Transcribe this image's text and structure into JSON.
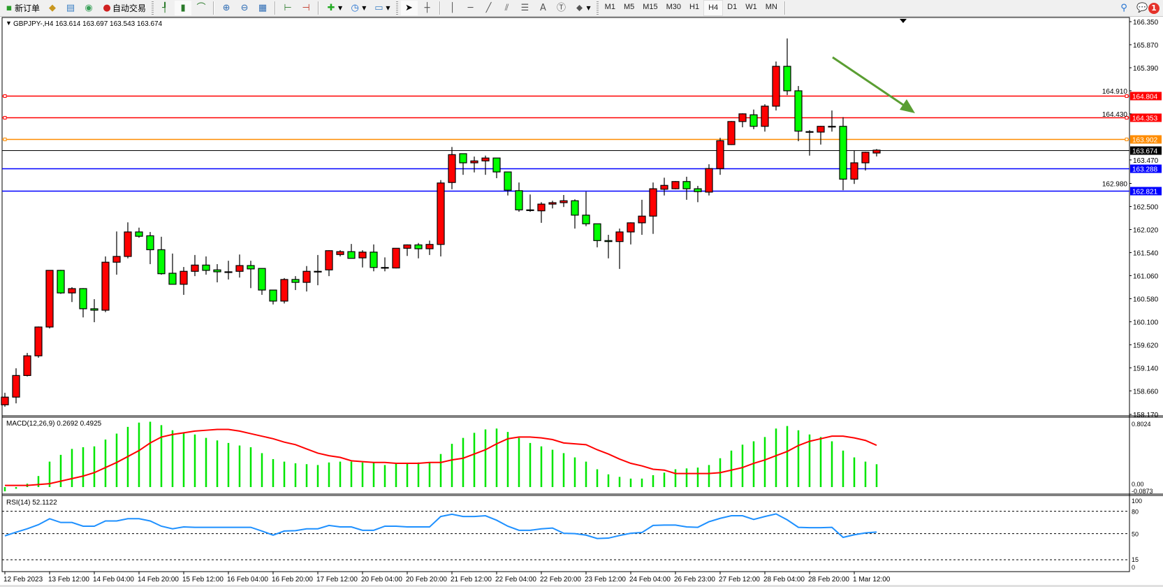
{
  "toolbar": {
    "new_order": "新订单",
    "auto_trading": "自动交易",
    "timeframes": [
      "M1",
      "M5",
      "M15",
      "M30",
      "H1",
      "H4",
      "D1",
      "W1",
      "MN"
    ],
    "active_timeframe": "H4",
    "notification_count": "1",
    "icons": [
      "new-order-icon",
      "market-watch-icon",
      "data-window-icon",
      "signals-icon",
      "auto-trading-icon",
      "bar-chart-icon",
      "candlestick-icon",
      "line-chart-icon",
      "zoom-in-icon",
      "zoom-out-icon",
      "tile-windows-icon",
      "chart-shift-icon",
      "autoscroll-icon",
      "indicators-icon",
      "periods-icon",
      "templates-icon",
      "cursor-icon",
      "crosshair-icon",
      "vertical-line-icon",
      "horizontal-line-icon",
      "trendline-icon",
      "equidistant-channel-icon",
      "fibonacci-icon",
      "text-icon",
      "text-label-icon",
      "arrows-icon",
      "search-icon",
      "notification-icon"
    ]
  },
  "chart": {
    "header": "GBPJPY-,H4  163.614 163.697 163.543 163.674",
    "colors": {
      "bull": "#ff0000",
      "bear": "#00ff00",
      "macd_hist": "#00e600",
      "macd_signal": "#ff0000",
      "rsi": "#1e90ff",
      "arrow": "#5a9e32"
    },
    "price_axis_labels": [
      "166.350",
      "165.870",
      "165.390",
      "164.910",
      "164.430",
      "163.470",
      "162.980",
      "162.500",
      "162.020",
      "161.540",
      "161.060",
      "160.580",
      "160.100",
      "159.620",
      "159.140",
      "158.660",
      "158.170"
    ],
    "price_range": [
      158.17,
      166.35
    ],
    "current_price": {
      "price": "163.674",
      "color": "#000000"
    },
    "level_lines": [
      {
        "price": "164.804",
        "color": "#ff0000"
      },
      {
        "price": "164.353",
        "color": "#ff0000"
      },
      {
        "price": "163.902",
        "color": "#ff8c00"
      },
      {
        "price": "163.288",
        "color": "#0000ff"
      },
      {
        "price": "162.821",
        "color": "#0000ff"
      }
    ],
    "candles_ohlc": [
      [
        158.37,
        158.62,
        158.33,
        158.53
      ],
      [
        158.53,
        159.13,
        158.4,
        158.98
      ],
      [
        158.98,
        159.45,
        158.96,
        159.39
      ],
      [
        159.39,
        160.0,
        159.35,
        159.99
      ],
      [
        159.99,
        161.17,
        159.96,
        161.17
      ],
      [
        161.17,
        161.18,
        160.68,
        160.7
      ],
      [
        160.7,
        160.82,
        160.51,
        160.79
      ],
      [
        160.79,
        160.8,
        160.19,
        160.37
      ],
      [
        160.37,
        160.57,
        160.09,
        160.34
      ],
      [
        160.34,
        161.46,
        160.3,
        161.34
      ],
      [
        161.34,
        161.98,
        161.08,
        161.46
      ],
      [
        161.46,
        162.17,
        161.42,
        161.97
      ],
      [
        161.97,
        162.06,
        161.85,
        161.88
      ],
      [
        161.89,
        161.97,
        161.3,
        161.6
      ],
      [
        161.6,
        161.87,
        161.08,
        161.1
      ],
      [
        161.11,
        161.52,
        160.88,
        160.88
      ],
      [
        160.88,
        161.24,
        160.66,
        161.15
      ],
      [
        161.15,
        161.49,
        161.05,
        161.28
      ],
      [
        161.28,
        161.46,
        161.08,
        161.17
      ],
      [
        161.18,
        161.3,
        160.92,
        161.14
      ],
      [
        161.14,
        161.37,
        160.98,
        161.14
      ],
      [
        161.15,
        161.5,
        161.02,
        161.27
      ],
      [
        161.27,
        161.37,
        160.8,
        161.2
      ],
      [
        161.21,
        161.21,
        160.66,
        160.76
      ],
      [
        160.76,
        160.76,
        160.46,
        160.53
      ],
      [
        160.53,
        161.01,
        160.48,
        160.98
      ],
      [
        160.98,
        161.05,
        160.76,
        160.92
      ],
      [
        160.92,
        161.26,
        160.73,
        161.15
      ],
      [
        161.15,
        161.49,
        160.86,
        161.15
      ],
      [
        161.18,
        161.59,
        161.05,
        161.58
      ],
      [
        161.5,
        161.59,
        161.46,
        161.56
      ],
      [
        161.56,
        161.72,
        161.42,
        161.42
      ],
      [
        161.43,
        161.59,
        161.23,
        161.55
      ],
      [
        161.55,
        161.71,
        161.15,
        161.23
      ],
      [
        161.23,
        161.44,
        161.15,
        161.22
      ],
      [
        161.22,
        161.63,
        161.21,
        161.63
      ],
      [
        161.63,
        161.71,
        161.47,
        161.7
      ],
      [
        161.7,
        161.74,
        161.42,
        161.62
      ],
      [
        161.62,
        161.79,
        161.49,
        161.71
      ],
      [
        161.71,
        163.05,
        161.46,
        162.99
      ],
      [
        163.0,
        163.74,
        162.86,
        163.58
      ],
      [
        163.6,
        163.6,
        163.16,
        163.41
      ],
      [
        163.41,
        163.54,
        163.21,
        163.45
      ],
      [
        163.45,
        163.56,
        163.16,
        163.51
      ],
      [
        163.51,
        163.51,
        163.09,
        163.22
      ],
      [
        163.22,
        163.22,
        162.73,
        162.84
      ],
      [
        162.83,
        163.0,
        162.39,
        162.43
      ],
      [
        162.43,
        162.75,
        162.39,
        162.42
      ],
      [
        162.41,
        162.59,
        162.16,
        162.55
      ],
      [
        162.55,
        162.62,
        162.46,
        162.58
      ],
      [
        162.58,
        162.74,
        162.49,
        162.62
      ],
      [
        162.62,
        162.65,
        162.04,
        162.32
      ],
      [
        162.32,
        162.81,
        162.09,
        162.14
      ],
      [
        162.14,
        162.14,
        161.65,
        161.79
      ],
      [
        161.79,
        161.91,
        161.42,
        161.77
      ],
      [
        161.77,
        162.04,
        161.2,
        161.97
      ],
      [
        161.97,
        162.17,
        161.71,
        162.16
      ],
      [
        162.16,
        162.64,
        161.91,
        162.3
      ],
      [
        162.3,
        163.0,
        161.93,
        162.87
      ],
      [
        162.86,
        163.1,
        162.73,
        162.94
      ],
      [
        162.87,
        163.03,
        162.86,
        163.02
      ],
      [
        163.02,
        163.12,
        162.64,
        162.87
      ],
      [
        162.87,
        162.93,
        162.59,
        162.81
      ],
      [
        162.8,
        163.38,
        162.73,
        163.29
      ],
      [
        163.29,
        163.93,
        163.16,
        163.87
      ],
      [
        163.79,
        164.28,
        163.78,
        164.27
      ],
      [
        164.27,
        164.44,
        164.15,
        164.43
      ],
      [
        164.41,
        164.52,
        164.11,
        164.17
      ],
      [
        164.17,
        164.63,
        164.06,
        164.59
      ],
      [
        164.59,
        165.52,
        164.5,
        165.42
      ],
      [
        165.42,
        166.0,
        164.82,
        164.91
      ],
      [
        164.91,
        165.01,
        163.86,
        164.07
      ],
      [
        164.06,
        164.09,
        163.56,
        164.05
      ],
      [
        164.05,
        164.18,
        163.79,
        164.17
      ],
      [
        164.17,
        164.5,
        164.06,
        164.17
      ],
      [
        164.17,
        164.36,
        162.84,
        163.07
      ],
      [
        163.07,
        163.67,
        162.97,
        163.41
      ],
      [
        163.41,
        163.64,
        163.25,
        163.63
      ],
      [
        163.614,
        163.697,
        163.543,
        163.674
      ]
    ],
    "time_labels": [
      "12 Feb 2023",
      "13 Feb 12:00",
      "14 Feb 04:00",
      "14 Feb 20:00",
      "15 Feb 12:00",
      "16 Feb 04:00",
      "16 Feb 20:00",
      "17 Feb 12:00",
      "20 Feb 04:00",
      "20 Feb 20:00",
      "21 Feb 12:00",
      "22 Feb 04:00",
      "22 Feb 20:00",
      "23 Feb 12:00",
      "24 Feb 04:00",
      "26 Feb 23:00",
      "27 Feb 12:00",
      "28 Feb 04:00",
      "28 Feb 20:00",
      "1 Mar 12:00"
    ],
    "time_label_every_n_bars": 4
  },
  "macd": {
    "label": "MACD(12,26,9) 0.2692 0.4925",
    "axis_labels": [
      "0.8024",
      "0.00",
      "-0.0873"
    ],
    "range": [
      -0.0873,
      0.8024
    ],
    "histogram": [
      -0.05,
      -0.02,
      0.04,
      0.13,
      0.3,
      0.38,
      0.45,
      0.47,
      0.48,
      0.56,
      0.63,
      0.71,
      0.76,
      0.77,
      0.73,
      0.67,
      0.64,
      0.62,
      0.58,
      0.55,
      0.52,
      0.49,
      0.47,
      0.4,
      0.33,
      0.3,
      0.28,
      0.27,
      0.26,
      0.29,
      0.3,
      0.3,
      0.29,
      0.29,
      0.26,
      0.28,
      0.28,
      0.29,
      0.29,
      0.39,
      0.51,
      0.58,
      0.64,
      0.68,
      0.69,
      0.65,
      0.58,
      0.52,
      0.48,
      0.44,
      0.4,
      0.35,
      0.3,
      0.21,
      0.15,
      0.12,
      0.1,
      0.1,
      0.14,
      0.17,
      0.21,
      0.22,
      0.23,
      0.26,
      0.34,
      0.43,
      0.5,
      0.54,
      0.59,
      0.69,
      0.72,
      0.67,
      0.62,
      0.59,
      0.54,
      0.43,
      0.35,
      0.3,
      0.2692
    ],
    "signal": [
      0.02,
      0.02,
      0.02,
      0.03,
      0.04,
      0.07,
      0.1,
      0.13,
      0.17,
      0.23,
      0.29,
      0.36,
      0.43,
      0.52,
      0.59,
      0.62,
      0.64,
      0.66,
      0.67,
      0.68,
      0.68,
      0.66,
      0.63,
      0.6,
      0.57,
      0.53,
      0.5,
      0.45,
      0.4,
      0.37,
      0.35,
      0.31,
      0.3,
      0.29,
      0.29,
      0.28,
      0.28,
      0.28,
      0.29,
      0.29,
      0.32,
      0.34,
      0.39,
      0.44,
      0.51,
      0.57,
      0.59,
      0.59,
      0.58,
      0.56,
      0.52,
      0.51,
      0.5,
      0.44,
      0.39,
      0.33,
      0.28,
      0.25,
      0.21,
      0.2,
      0.16,
      0.16,
      0.16,
      0.16,
      0.17,
      0.2,
      0.23,
      0.28,
      0.32,
      0.37,
      0.42,
      0.49,
      0.54,
      0.57,
      0.6,
      0.6,
      0.58,
      0.55,
      0.4925
    ]
  },
  "rsi": {
    "label": "RSI(14) 52.1122",
    "axis_labels": [
      "100",
      "80",
      "50",
      "15",
      "0"
    ],
    "levels": [
      80,
      50,
      15
    ],
    "values": [
      47,
      52,
      56.5,
      62,
      70,
      65,
      65,
      60,
      60,
      67,
      67,
      70,
      70,
      67,
      60,
      56.5,
      59,
      58.5,
      58.5,
      58.5,
      58.5,
      58.5,
      58.5,
      53.5,
      48,
      53.5,
      54,
      56.5,
      56.5,
      61,
      59,
      59,
      54.5,
      54.5,
      60,
      60,
      59,
      59,
      59,
      73,
      76,
      73,
      73,
      74,
      68,
      60,
      54.5,
      54.5,
      56.5,
      57.5,
      50.5,
      50,
      48,
      43.5,
      44,
      47.5,
      50.5,
      51.5,
      61,
      61.5,
      61.5,
      59,
      58.5,
      66,
      70.5,
      74,
      74,
      69,
      73,
      76.5,
      68.5,
      58.5,
      58,
      58,
      58.5,
      45,
      48.5,
      51,
      52.1122
    ]
  }
}
